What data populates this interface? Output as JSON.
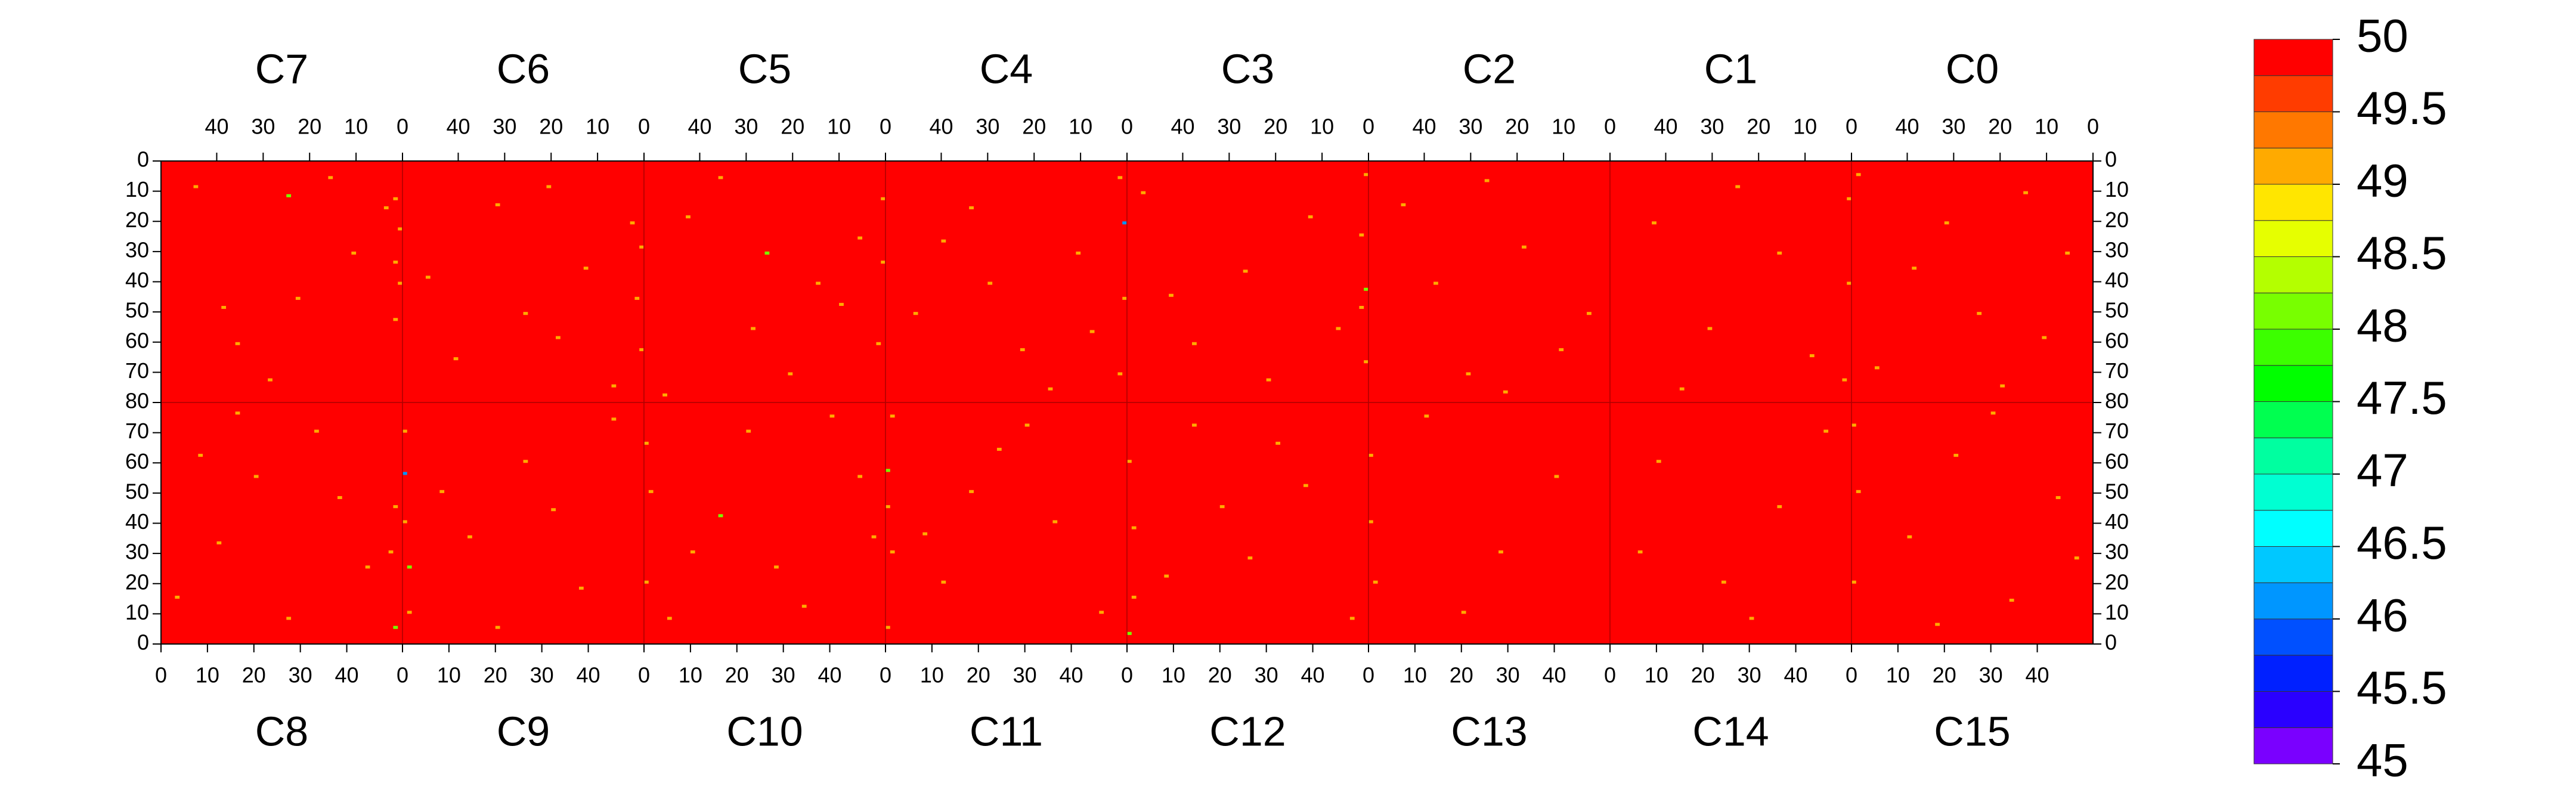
{
  "chart_data": {
    "type": "heatmap",
    "top": {
      "xlim": [
        0,
        52
      ],
      "xticks": [
        0,
        10,
        20,
        30,
        40
      ],
      "reversed": true,
      "ylim": [
        0,
        80
      ],
      "yticks": [
        0,
        10,
        20,
        30,
        40,
        50,
        60,
        70,
        80
      ],
      "chips": [
        {
          "name": "C7",
          "value": 50,
          "cells": [
            [
              3,
              15,
              49.1
            ],
            [
              10,
              30,
              49.1
            ],
            [
              22,
              45,
              49.1
            ],
            [
              35,
              60,
              49.1
            ],
            [
              44,
              8,
              49.1
            ],
            [
              1,
              12,
              49.1
            ],
            [
              1,
              33,
              49.1
            ],
            [
              0,
              40,
              49.1
            ],
            [
              1,
              52,
              49.1
            ],
            [
              28,
              72,
              49.1
            ],
            [
              15,
              5,
              49.1
            ],
            [
              24,
              11,
              48.1
            ],
            [
              0,
              22,
              49.1
            ],
            [
              38,
              48,
              49.1
            ]
          ]
        },
        {
          "name": "C6",
          "value": 50,
          "cells": [
            [
              2,
              20,
              49.1
            ],
            [
              12,
              35,
              49.1
            ],
            [
              25,
              50,
              49.1
            ],
            [
              40,
              65,
              49.1
            ],
            [
              6,
              74,
              49.1
            ],
            [
              0,
              28,
              49.1
            ],
            [
              1,
              45,
              49.1
            ],
            [
              31,
              14,
              49.1
            ],
            [
              18,
              58,
              49.1
            ],
            [
              46,
              38,
              49.1
            ],
            [
              0,
              62,
              49.1
            ],
            [
              20,
              8,
              49.1
            ]
          ]
        },
        {
          "name": "C5",
          "value": 50,
          "cells": [
            [
              5,
              25,
              49.1
            ],
            [
              14,
              40,
              49.1
            ],
            [
              28,
              55,
              49.1
            ],
            [
              42,
              18,
              49.1
            ],
            [
              0,
              12,
              49.1
            ],
            [
              1,
              60,
              49.1
            ],
            [
              20,
              70,
              49.1
            ],
            [
              35,
              5,
              49.1
            ],
            [
              9,
              47,
              49.1
            ],
            [
              0,
              33,
              49.1
            ],
            [
              25,
              30,
              48.1
            ],
            [
              47,
              77,
              49.1
            ]
          ]
        },
        {
          "name": "C4",
          "value": 50,
          "cells": [
            [
              0,
              20,
              46.1
            ],
            [
              1,
              5,
              49.1
            ],
            [
              0,
              45,
              49.1
            ],
            [
              1,
              70,
              49.1
            ],
            [
              10,
              30,
              49.1
            ],
            [
              22,
              62,
              49.1
            ],
            [
              33,
              15,
              49.1
            ],
            [
              45,
              50,
              49.1
            ],
            [
              16,
              75,
              49.1
            ],
            [
              29,
              40,
              49.1
            ],
            [
              7,
              56,
              49.1
            ],
            [
              39,
              26,
              49.1
            ]
          ]
        },
        {
          "name": "C3",
          "value": 50,
          "cells": [
            [
              0,
              4,
              49.1
            ],
            [
              1,
              24,
              49.1
            ],
            [
              0,
              42,
              48.1
            ],
            [
              1,
              48,
              49.1
            ],
            [
              0,
              66,
              49.1
            ],
            [
              12,
              18,
              49.1
            ],
            [
              26,
              36,
              49.1
            ],
            [
              37,
              60,
              49.1
            ],
            [
              48,
              10,
              49.1
            ],
            [
              21,
              72,
              49.1
            ],
            [
              42,
              44,
              49.1
            ],
            [
              6,
              55,
              49.1
            ]
          ]
        },
        {
          "name": "C2",
          "value": 50,
          "cells": [
            [
              4,
              50,
              49.1
            ],
            [
              18,
              28,
              49.1
            ],
            [
              30,
              70,
              49.1
            ],
            [
              44,
              14,
              49.1
            ],
            [
              10,
              62,
              49.1
            ],
            [
              26,
              6,
              49.1
            ],
            [
              37,
              40,
              49.1
            ],
            [
              22,
              76,
              49.1
            ]
          ]
        },
        {
          "name": "C1",
          "value": 50,
          "cells": [
            [
              0,
              12,
              49.1
            ],
            [
              0,
              40,
              49.1
            ],
            [
              1,
              72,
              49.1
            ],
            [
              15,
              30,
              49.1
            ],
            [
              30,
              55,
              49.1
            ],
            [
              42,
              20,
              49.1
            ],
            [
              8,
              64,
              49.1
            ],
            [
              24,
              8,
              49.1
            ],
            [
              36,
              75,
              49.1
            ]
          ]
        },
        {
          "name": "C0",
          "value": 50,
          "cells": [
            [
              5,
              30,
              49.1
            ],
            [
              14,
              10,
              49.1
            ],
            [
              24,
              50,
              49.1
            ],
            [
              38,
              35,
              49.1
            ],
            [
              46,
              68,
              49.1
            ],
            [
              19,
              74,
              49.1
            ],
            [
              31,
              20,
              49.1
            ],
            [
              10,
              58,
              49.1
            ],
            [
              50,
              4,
              49.1
            ]
          ]
        }
      ]
    },
    "bottom": {
      "xlim": [
        0,
        52
      ],
      "xticks": [
        0,
        10,
        20,
        30,
        40
      ],
      "reversed": false,
      "ylim": [
        0,
        80
      ],
      "yticks": [
        0,
        10,
        20,
        30,
        40,
        50,
        60,
        70
      ],
      "chips": [
        {
          "name": "C8",
          "value": 50,
          "cells": [
            [
              3,
              15,
              49.1
            ],
            [
              12,
              33,
              49.1
            ],
            [
              20,
              55,
              49.1
            ],
            [
              33,
              70,
              49.1
            ],
            [
              44,
              25,
              49.1
            ],
            [
              50,
              45,
              49.1
            ],
            [
              50,
              5,
              48.1
            ],
            [
              8,
              62,
              49.1
            ],
            [
              27,
              8,
              49.1
            ],
            [
              38,
              48,
              49.1
            ],
            [
              16,
              76,
              49.1
            ],
            [
              49,
              30,
              49.1
            ]
          ]
        },
        {
          "name": "C9",
          "value": 50,
          "cells": [
            [
              0,
              56,
              46.1
            ],
            [
              1,
              25,
              48.1
            ],
            [
              0,
              40,
              49.1
            ],
            [
              1,
              10,
              49.1
            ],
            [
              0,
              70,
              49.1
            ],
            [
              14,
              35,
              49.1
            ],
            [
              26,
              60,
              49.1
            ],
            [
              38,
              18,
              49.1
            ],
            [
              45,
              74,
              49.1
            ],
            [
              20,
              5,
              49.1
            ],
            [
              32,
              44,
              49.1
            ],
            [
              8,
              50,
              49.1
            ]
          ]
        },
        {
          "name": "C10",
          "value": 50,
          "cells": [
            [
              0,
              20,
              49.1
            ],
            [
              1,
              50,
              49.1
            ],
            [
              0,
              66,
              49.1
            ],
            [
              10,
              30,
              49.1
            ],
            [
              22,
              70,
              49.1
            ],
            [
              34,
              12,
              49.1
            ],
            [
              46,
              55,
              49.1
            ],
            [
              16,
              42,
              48.1
            ],
            [
              28,
              25,
              49.1
            ],
            [
              40,
              75,
              49.1
            ],
            [
              5,
              8,
              49.1
            ],
            [
              49,
              35,
              49.1
            ]
          ]
        },
        {
          "name": "C11",
          "value": 50,
          "cells": [
            [
              0,
              57,
              48.1
            ],
            [
              0,
              5,
              49.1
            ],
            [
              1,
              30,
              49.1
            ],
            [
              0,
              45,
              49.1
            ],
            [
              1,
              75,
              49.1
            ],
            [
              12,
              20,
              49.1
            ],
            [
              24,
              64,
              49.1
            ],
            [
              36,
              40,
              49.1
            ],
            [
              46,
              10,
              49.1
            ],
            [
              18,
              50,
              49.1
            ],
            [
              30,
              72,
              49.1
            ],
            [
              8,
              36,
              49.1
            ]
          ]
        },
        {
          "name": "C12",
          "value": 50,
          "cells": [
            [
              0,
              3,
              48.1
            ],
            [
              1,
              15,
              49.1
            ],
            [
              0,
              60,
              49.1
            ],
            [
              1,
              38,
              49.1
            ],
            [
              14,
              72,
              49.1
            ],
            [
              26,
              28,
              49.1
            ],
            [
              38,
              52,
              49.1
            ],
            [
              48,
              8,
              49.1
            ],
            [
              20,
              45,
              49.1
            ],
            [
              32,
              66,
              49.1
            ],
            [
              8,
              22,
              49.1
            ]
          ]
        },
        {
          "name": "C13",
          "value": 50,
          "cells": [
            [
              0,
              40,
              49.1
            ],
            [
              1,
              20,
              49.1
            ],
            [
              0,
              62,
              49.1
            ],
            [
              12,
              75,
              49.1
            ],
            [
              28,
              30,
              49.1
            ],
            [
              40,
              55,
              49.1
            ],
            [
              20,
              10,
              49.1
            ]
          ]
        },
        {
          "name": "C14",
          "value": 50,
          "cells": [
            [
              10,
              60,
              49.1
            ],
            [
              24,
              20,
              49.1
            ],
            [
              36,
              45,
              49.1
            ],
            [
              46,
              70,
              49.1
            ],
            [
              6,
              30,
              49.1
            ],
            [
              30,
              8,
              49.1
            ]
          ]
        },
        {
          "name": "C15",
          "value": 50,
          "cells": [
            [
              0,
              20,
              49.1
            ],
            [
              1,
              50,
              49.1
            ],
            [
              0,
              72,
              49.1
            ],
            [
              12,
              35,
              49.1
            ],
            [
              22,
              62,
              49.1
            ],
            [
              34,
              14,
              49.1
            ],
            [
              44,
              48,
              49.1
            ],
            [
              18,
              6,
              49.1
            ],
            [
              30,
              76,
              49.1
            ],
            [
              48,
              28,
              49.1
            ]
          ]
        }
      ]
    },
    "colorbar": {
      "lim": [
        45,
        50
      ],
      "ticks": [
        45,
        45.5,
        46,
        46.5,
        47,
        47.5,
        48,
        48.5,
        49,
        49.5,
        50
      ],
      "colors": [
        "#7a00ff",
        "#2a00ff",
        "#0020ff",
        "#0050ff",
        "#0096ff",
        "#00c8ff",
        "#00ffff",
        "#00ffd2",
        "#00ffa0",
        "#00ff50",
        "#00ff00",
        "#3cff00",
        "#78ff00",
        "#b4ff00",
        "#e6ff00",
        "#ffe600",
        "#ffaa00",
        "#ff7800",
        "#ff3c00",
        "#ff0000"
      ]
    }
  }
}
